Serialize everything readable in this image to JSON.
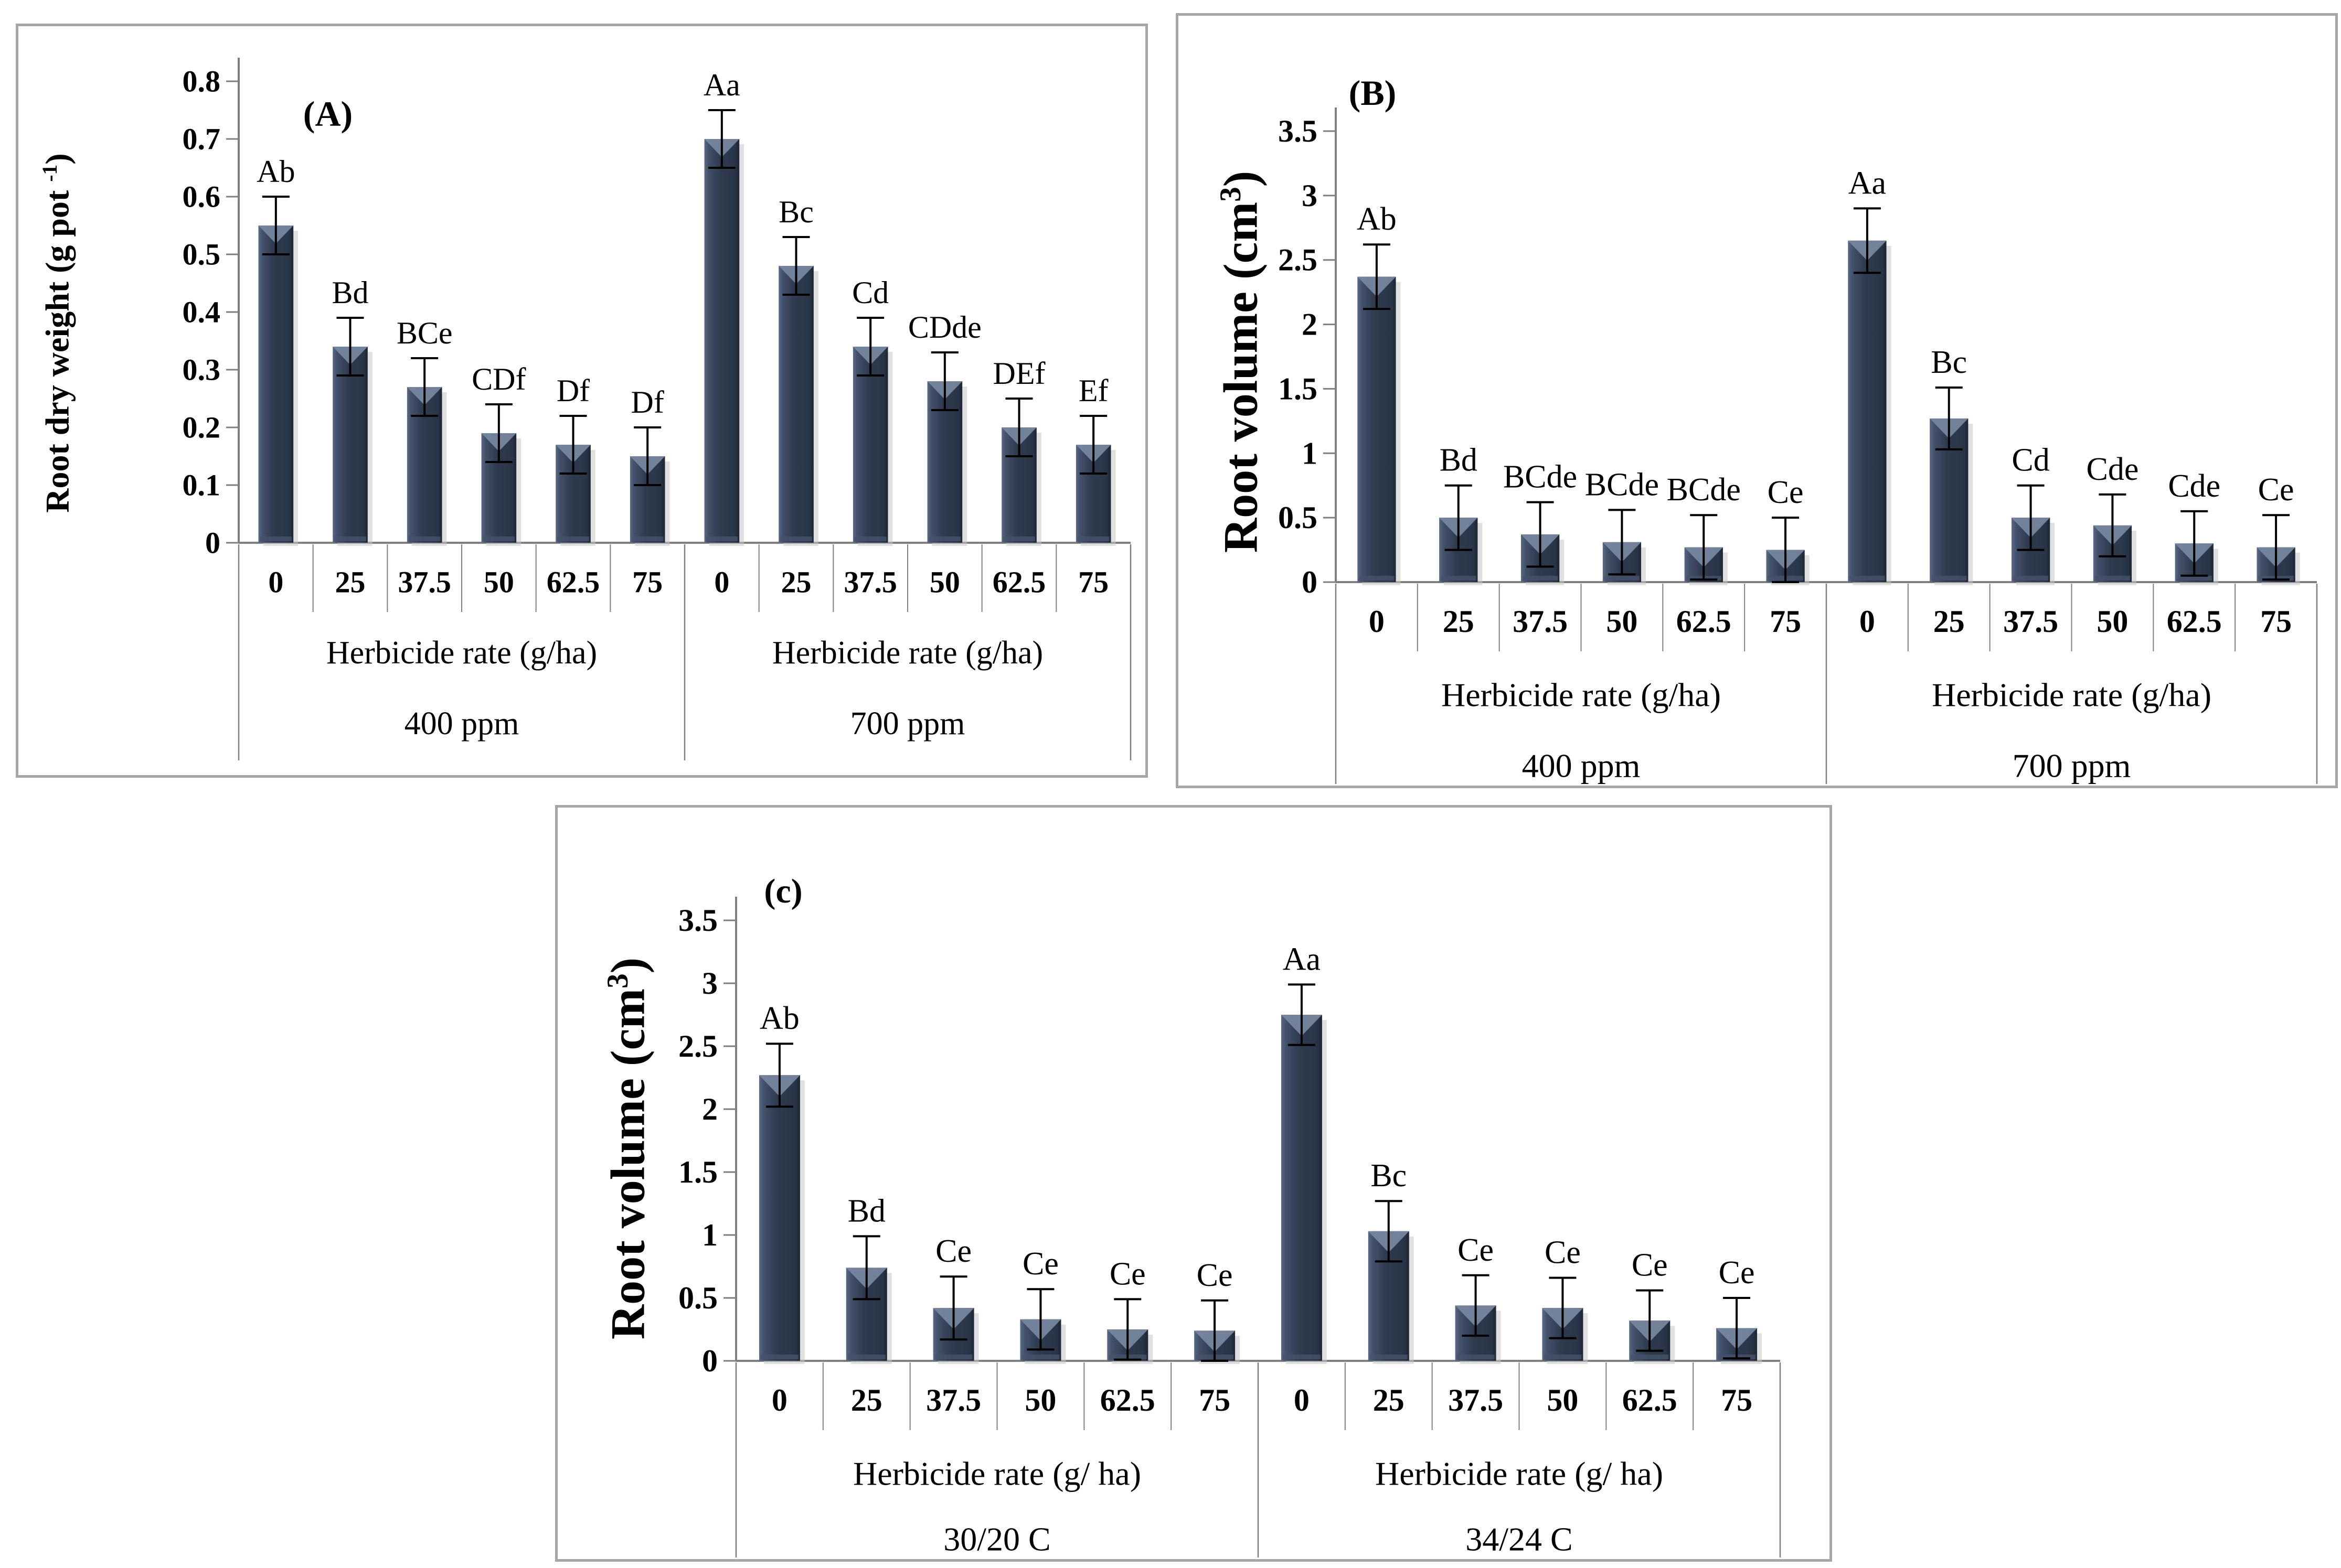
{
  "figure": {
    "background": "#ffffff"
  },
  "colors": {
    "bar_dark": "#2f3a4e",
    "bar_light": "#5a6a84",
    "bar_bevel": "#76869e",
    "bar_edge": "#1f2735",
    "bar_shadow": "#c6c6c6",
    "axis": "#7f7f7f",
    "panel_border": "#a6a6a6",
    "error_bar": "#000000",
    "text": "#000000"
  },
  "chart_data": [
    {
      "id": "A",
      "type": "bar",
      "panel_label": "(A)",
      "ylabel": "Root dry weight (g pot -1)",
      "ylabel_parts": {
        "pre": "Root dry weight (g pot ",
        "sup": "-1",
        "post": ")"
      },
      "ylim": [
        0,
        0.8
      ],
      "ytick_step": 0.1,
      "yticks": [
        "0",
        "0.1",
        "0.2",
        "0.3",
        "0.4",
        "0.5",
        "0.6",
        "0.7",
        "0.8"
      ],
      "grid": false,
      "legend": "none",
      "groups": [
        {
          "group_label": "400 ppm",
          "axis_caption": "Herbicide rate (g/ha)",
          "categories": [
            "0",
            "25",
            "37.5",
            "50",
            "62.5",
            "75"
          ],
          "values": [
            0.55,
            0.34,
            0.27,
            0.19,
            0.17,
            0.15
          ],
          "errors": [
            0.05,
            0.05,
            0.05,
            0.05,
            0.05,
            0.05
          ],
          "letters": [
            "Ab",
            "Bd",
            "BCe",
            "CDf",
            "Df",
            "Df"
          ]
        },
        {
          "group_label": "700 ppm",
          "axis_caption": "Herbicide rate (g/ha)",
          "categories": [
            "0",
            "25",
            "37.5",
            "50",
            "62.5",
            "75"
          ],
          "values": [
            0.7,
            0.48,
            0.34,
            0.28,
            0.2,
            0.17
          ],
          "errors": [
            0.05,
            0.05,
            0.05,
            0.05,
            0.05,
            0.05
          ],
          "letters": [
            "Aa",
            "Bc",
            "Cd",
            "CDde",
            "DEf",
            "Ef"
          ]
        }
      ]
    },
    {
      "id": "B",
      "type": "bar",
      "panel_label": "(B)",
      "ylabel": "Root volume (cm3)",
      "ylabel_parts": {
        "pre": "Root volume (cm",
        "sup": "3",
        "post": ")"
      },
      "ylim": [
        0,
        3.5
      ],
      "ytick_step": 0.5,
      "yticks": [
        "0",
        "0.5",
        "1",
        "1.5",
        "2",
        "2.5",
        "3",
        "3.5"
      ],
      "grid": false,
      "legend": "none",
      "groups": [
        {
          "group_label": "400 ppm",
          "axis_caption": "Herbicide rate (g/ha)",
          "categories": [
            "0",
            "25",
            "37.5",
            "50",
            "62.5",
            "75"
          ],
          "values": [
            2.37,
            0.5,
            0.37,
            0.31,
            0.27,
            0.25
          ],
          "errors": [
            0.25,
            0.25,
            0.25,
            0.25,
            0.25,
            0.25
          ],
          "letters": [
            "Ab",
            "Bd",
            "BCde",
            "BCde",
            "BCde",
            "Ce"
          ]
        },
        {
          "group_label": "700 ppm",
          "axis_caption": "Herbicide rate (g/ha)",
          "categories": [
            "0",
            "25",
            "37.5",
            "50",
            "62.5",
            "75"
          ],
          "values": [
            2.65,
            1.27,
            0.5,
            0.44,
            0.3,
            0.27
          ],
          "errors": [
            0.25,
            0.24,
            0.25,
            0.24,
            0.25,
            0.25
          ],
          "letters": [
            "Aa",
            "Bc",
            "Cd",
            "Cde",
            "Cde",
            "Ce"
          ]
        }
      ]
    },
    {
      "id": "C",
      "type": "bar",
      "panel_label": "(c)",
      "ylabel": "Root volume (cm3)",
      "ylabel_parts": {
        "pre": "Root volume (cm",
        "sup": "3",
        "post": ")"
      },
      "ylim": [
        0,
        3.5
      ],
      "ytick_step": 0.5,
      "yticks": [
        "0",
        "0.5",
        "1",
        "1.5",
        "2",
        "2.5",
        "3",
        "3.5"
      ],
      "grid": false,
      "legend": "none",
      "groups": [
        {
          "group_label": "30/20 C",
          "axis_caption": "Herbicide rate (g/ ha)",
          "categories": [
            "0",
            "25",
            "37.5",
            "50",
            "62.5",
            "75"
          ],
          "values": [
            2.27,
            0.74,
            0.42,
            0.33,
            0.25,
            0.24
          ],
          "errors": [
            0.25,
            0.25,
            0.25,
            0.24,
            0.24,
            0.24
          ],
          "letters": [
            "Ab",
            "Bd",
            "Ce",
            "Ce",
            "Ce",
            "Ce"
          ]
        },
        {
          "group_label": "34/24 C",
          "axis_caption": "Herbicide rate (g/ ha)",
          "categories": [
            "0",
            "25",
            "37.5",
            "50",
            "62.5",
            "75"
          ],
          "values": [
            2.75,
            1.03,
            0.44,
            0.42,
            0.32,
            0.26
          ],
          "errors": [
            0.24,
            0.24,
            0.24,
            0.24,
            0.24,
            0.24
          ],
          "letters": [
            "Aa",
            "Bc",
            "Ce",
            "Ce",
            "Ce",
            "Ce"
          ]
        }
      ]
    }
  ]
}
